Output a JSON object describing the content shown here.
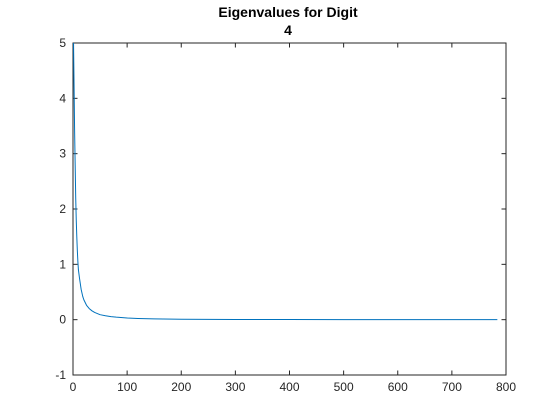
{
  "chart_data": {
    "type": "line",
    "title_lines": [
      "Eigenvalues for Digit",
      "4"
    ],
    "xlabel": "",
    "ylabel": "",
    "xlim": [
      0,
      800
    ],
    "ylim": [
      -1,
      5
    ],
    "x_ticks": [
      0,
      100,
      200,
      300,
      400,
      500,
      600,
      700,
      800
    ],
    "y_ticks": [
      -1,
      0,
      1,
      2,
      3,
      4,
      5
    ],
    "grid": false,
    "series": [
      {
        "color": "#0072bd",
        "x": [
          1,
          2,
          3,
          4,
          5,
          6,
          7,
          8,
          9,
          10,
          12,
          15,
          18,
          20,
          25,
          30,
          35,
          40,
          50,
          60,
          70,
          80,
          100,
          120,
          150,
          200,
          300,
          400,
          500,
          600,
          700,
          784
        ],
        "y": [
          5.0,
          4.2,
          3.4,
          2.8,
          2.2,
          1.8,
          1.5,
          1.25,
          1.05,
          0.9,
          0.75,
          0.55,
          0.42,
          0.36,
          0.26,
          0.2,
          0.16,
          0.13,
          0.09,
          0.07,
          0.055,
          0.045,
          0.03,
          0.022,
          0.015,
          0.008,
          0.004,
          0.002,
          0.001,
          0.0005,
          0.0002,
          0.0
        ]
      }
    ]
  }
}
